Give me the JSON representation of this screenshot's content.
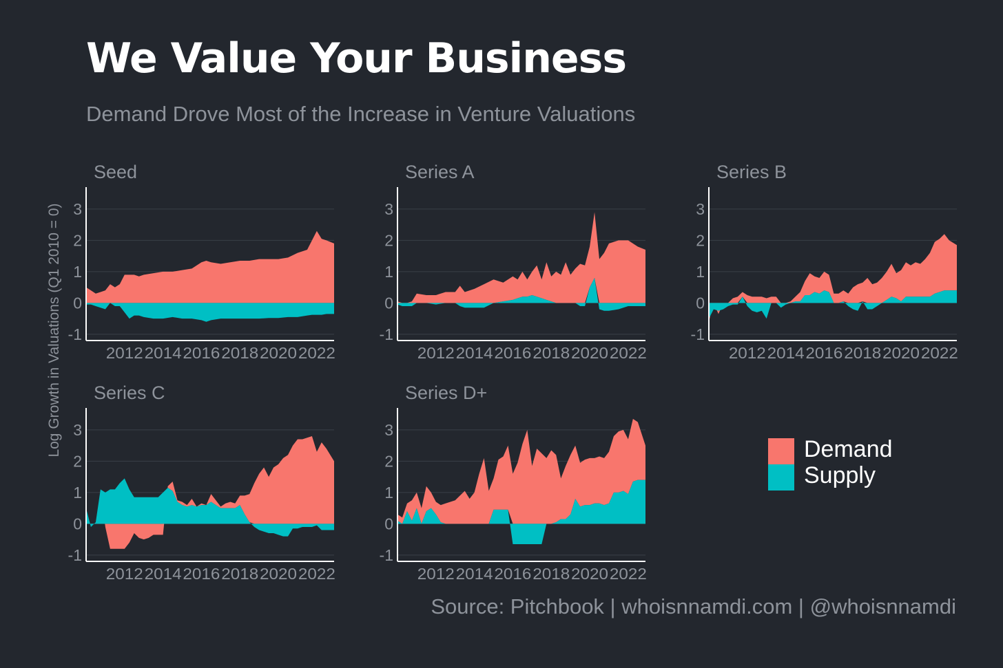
{
  "header": {
    "title": "We Value Your Business",
    "subtitle": "Demand Drove Most of the Increase in Venture Valuations"
  },
  "source": "Source: Pitchbook | whoisnnamdi.com | @whoisnnamdi",
  "colors": {
    "demand": "#f8766d",
    "supply": "#00bfc4",
    "background": "#23272e",
    "text": "#ffffff",
    "muted": "#8e939b"
  },
  "legend": [
    {
      "name": "Demand",
      "color": "#f8766d"
    },
    {
      "name": "Supply",
      "color": "#00bfc4"
    }
  ],
  "chart_data": {
    "type": "area",
    "stacking": "diverging-stacked",
    "ylabel": "Log Growth in Valuations (Q1 2010 = 0)",
    "xlabel": "",
    "xlim": [
      2010,
      2022.9
    ],
    "ylim": [
      -1.2,
      3.7
    ],
    "x_ticks": [
      2012,
      2014,
      2016,
      2018,
      2020,
      2022
    ],
    "y_ticks": [
      -1,
      0,
      1,
      2,
      3
    ],
    "grid": true,
    "legend_position": "right",
    "series_names": [
      "Demand",
      "Supply"
    ],
    "panels": [
      {
        "title": "Seed",
        "points": [
          [
            2010.0,
            0.5,
            -0.05
          ],
          [
            2010.25,
            0.4,
            -0.05
          ],
          [
            2010.5,
            0.3,
            -0.1
          ],
          [
            2010.75,
            0.35,
            -0.15
          ],
          [
            2011.0,
            0.4,
            -0.2
          ],
          [
            2011.25,
            0.6,
            0.0
          ],
          [
            2011.5,
            0.5,
            -0.1
          ],
          [
            2011.75,
            0.6,
            -0.1
          ],
          [
            2012.0,
            0.9,
            -0.3
          ],
          [
            2012.25,
            0.9,
            -0.5
          ],
          [
            2012.5,
            0.9,
            -0.4
          ],
          [
            2012.75,
            0.85,
            -0.4
          ],
          [
            2013.0,
            0.9,
            -0.45
          ],
          [
            2013.5,
            0.95,
            -0.5
          ],
          [
            2014.0,
            1.0,
            -0.5
          ],
          [
            2014.5,
            1.0,
            -0.45
          ],
          [
            2015.0,
            1.05,
            -0.5
          ],
          [
            2015.5,
            1.1,
            -0.5
          ],
          [
            2016.0,
            1.3,
            -0.55
          ],
          [
            2016.25,
            1.35,
            -0.6
          ],
          [
            2016.5,
            1.3,
            -0.55
          ],
          [
            2017.0,
            1.25,
            -0.5
          ],
          [
            2017.5,
            1.3,
            -0.5
          ],
          [
            2018.0,
            1.35,
            -0.5
          ],
          [
            2018.5,
            1.35,
            -0.5
          ],
          [
            2019.0,
            1.4,
            -0.5
          ],
          [
            2019.5,
            1.4,
            -0.48
          ],
          [
            2020.0,
            1.4,
            -0.48
          ],
          [
            2020.5,
            1.45,
            -0.45
          ],
          [
            2021.0,
            1.6,
            -0.45
          ],
          [
            2021.5,
            1.7,
            -0.4
          ],
          [
            2021.75,
            2.0,
            -0.38
          ],
          [
            2022.0,
            2.3,
            -0.38
          ],
          [
            2022.25,
            2.05,
            -0.38
          ],
          [
            2022.5,
            2.0,
            -0.35
          ],
          [
            2022.9,
            1.9,
            -0.35
          ]
        ]
      },
      {
        "title": "Series A",
        "points": [
          [
            2010.0,
            0.05,
            -0.05
          ],
          [
            2010.25,
            0.0,
            -0.1
          ],
          [
            2010.5,
            0.0,
            -0.1
          ],
          [
            2010.75,
            0.05,
            -0.1
          ],
          [
            2011.0,
            0.3,
            0.0
          ],
          [
            2011.5,
            0.25,
            0.0
          ],
          [
            2012.0,
            0.25,
            -0.05
          ],
          [
            2012.5,
            0.35,
            0.0
          ],
          [
            2013.0,
            0.35,
            0.0
          ],
          [
            2013.25,
            0.55,
            -0.1
          ],
          [
            2013.5,
            0.35,
            -0.15
          ],
          [
            2014.0,
            0.45,
            -0.15
          ],
          [
            2014.5,
            0.6,
            -0.15
          ],
          [
            2015.0,
            0.75,
            0.0
          ],
          [
            2015.5,
            0.6,
            0.05
          ],
          [
            2016.0,
            0.75,
            0.1
          ],
          [
            2016.25,
            0.6,
            0.15
          ],
          [
            2016.5,
            0.8,
            0.2
          ],
          [
            2016.75,
            0.55,
            0.2
          ],
          [
            2017.0,
            0.75,
            0.25
          ],
          [
            2017.25,
            1.0,
            0.2
          ],
          [
            2017.5,
            0.6,
            0.15
          ],
          [
            2017.75,
            1.2,
            0.1
          ],
          [
            2018.0,
            0.8,
            0.05
          ],
          [
            2018.25,
            1.0,
            0.0
          ],
          [
            2018.5,
            0.9,
            0.0
          ],
          [
            2018.75,
            1.3,
            0.0
          ],
          [
            2019.0,
            0.9,
            0.0
          ],
          [
            2019.25,
            1.1,
            0.0
          ],
          [
            2019.5,
            1.25,
            -0.1
          ],
          [
            2019.75,
            1.2,
            -0.1
          ],
          [
            2020.0,
            1.3,
            0.5
          ],
          [
            2020.25,
            2.1,
            0.8
          ],
          [
            2020.5,
            1.4,
            -0.2
          ],
          [
            2020.75,
            1.6,
            -0.25
          ],
          [
            2021.0,
            1.9,
            -0.25
          ],
          [
            2021.5,
            2.0,
            -0.2
          ],
          [
            2022.0,
            2.0,
            -0.1
          ],
          [
            2022.5,
            1.8,
            -0.1
          ],
          [
            2022.9,
            1.7,
            -0.1
          ]
        ]
      },
      {
        "title": "Series B",
        "points": [
          [
            2010.0,
            -0.1,
            -0.5
          ],
          [
            2010.25,
            0.0,
            -0.2
          ],
          [
            2010.5,
            -0.1,
            -0.25
          ],
          [
            2010.75,
            0.0,
            -0.2
          ],
          [
            2011.0,
            0.0,
            -0.1
          ],
          [
            2011.25,
            0.15,
            -0.05
          ],
          [
            2011.5,
            0.2,
            -0.05
          ],
          [
            2011.75,
            0.15,
            0.2
          ],
          [
            2012.0,
            0.25,
            -0.1
          ],
          [
            2012.25,
            0.2,
            -0.25
          ],
          [
            2012.5,
            0.2,
            -0.3
          ],
          [
            2012.75,
            0.2,
            -0.25
          ],
          [
            2013.0,
            0.15,
            -0.5
          ],
          [
            2013.25,
            0.2,
            0.0
          ],
          [
            2013.5,
            0.2,
            0.0
          ],
          [
            2013.75,
            0.0,
            -0.15
          ],
          [
            2014.0,
            0.0,
            -0.05
          ],
          [
            2014.25,
            0.05,
            0.0
          ],
          [
            2014.5,
            0.15,
            0.05
          ],
          [
            2014.75,
            0.3,
            0.05
          ],
          [
            2015.0,
            0.45,
            0.25
          ],
          [
            2015.25,
            0.7,
            0.25
          ],
          [
            2015.5,
            0.5,
            0.35
          ],
          [
            2015.75,
            0.5,
            0.3
          ],
          [
            2016.0,
            0.6,
            0.4
          ],
          [
            2016.25,
            0.55,
            0.35
          ],
          [
            2016.5,
            0.3,
            0.0
          ],
          [
            2016.75,
            0.3,
            0.0
          ],
          [
            2017.0,
            0.35,
            0.05
          ],
          [
            2017.25,
            0.3,
            -0.1
          ],
          [
            2017.5,
            0.5,
            -0.2
          ],
          [
            2017.75,
            0.6,
            -0.25
          ],
          [
            2018.0,
            0.6,
            0.05
          ],
          [
            2018.25,
            0.8,
            -0.2
          ],
          [
            2018.5,
            0.6,
            -0.2
          ],
          [
            2018.75,
            0.65,
            -0.1
          ],
          [
            2019.0,
            0.8,
            0.0
          ],
          [
            2019.25,
            0.9,
            0.1
          ],
          [
            2019.5,
            1.05,
            0.2
          ],
          [
            2019.75,
            0.8,
            0.15
          ],
          [
            2020.0,
            1.0,
            0.05
          ],
          [
            2020.25,
            1.1,
            0.2
          ],
          [
            2020.5,
            1.0,
            0.2
          ],
          [
            2020.75,
            1.1,
            0.2
          ],
          [
            2021.0,
            1.05,
            0.2
          ],
          [
            2021.25,
            1.2,
            0.2
          ],
          [
            2021.5,
            1.4,
            0.2
          ],
          [
            2021.75,
            1.65,
            0.3
          ],
          [
            2022.0,
            1.7,
            0.35
          ],
          [
            2022.25,
            1.8,
            0.4
          ],
          [
            2022.5,
            1.6,
            0.4
          ],
          [
            2022.9,
            1.45,
            0.4
          ]
        ]
      },
      {
        "title": "Series C",
        "points": [
          [
            2010.0,
            0.0,
            0.5
          ],
          [
            2010.25,
            0.0,
            -0.1
          ],
          [
            2010.5,
            0.0,
            0.05
          ],
          [
            2010.75,
            0.0,
            1.1
          ],
          [
            2011.0,
            -0.1,
            1.0
          ],
          [
            2011.25,
            -0.8,
            1.1
          ],
          [
            2011.5,
            -0.8,
            1.1
          ],
          [
            2011.75,
            -0.8,
            1.3
          ],
          [
            2012.0,
            -0.8,
            1.45
          ],
          [
            2012.25,
            -0.6,
            1.1
          ],
          [
            2012.5,
            -0.3,
            0.85
          ],
          [
            2012.75,
            -0.45,
            0.85
          ],
          [
            2013.0,
            -0.5,
            0.85
          ],
          [
            2013.25,
            -0.45,
            0.85
          ],
          [
            2013.5,
            -0.35,
            0.85
          ],
          [
            2013.75,
            -0.35,
            0.85
          ],
          [
            2014.0,
            -0.35,
            1.0
          ],
          [
            2014.25,
            0.05,
            1.15
          ],
          [
            2014.5,
            0.3,
            1.05
          ],
          [
            2014.75,
            0.05,
            0.7
          ],
          [
            2015.0,
            0.1,
            0.6
          ],
          [
            2015.25,
            0.05,
            0.55
          ],
          [
            2015.5,
            0.2,
            0.6
          ],
          [
            2015.75,
            0.0,
            0.55
          ],
          [
            2016.0,
            0.05,
            0.6
          ],
          [
            2016.25,
            0.0,
            0.6
          ],
          [
            2016.5,
            0.25,
            0.7
          ],
          [
            2016.75,
            0.15,
            0.6
          ],
          [
            2017.0,
            0.05,
            0.5
          ],
          [
            2017.25,
            0.15,
            0.5
          ],
          [
            2017.5,
            0.2,
            0.5
          ],
          [
            2017.75,
            0.15,
            0.5
          ],
          [
            2018.0,
            0.3,
            0.6
          ],
          [
            2018.25,
            0.6,
            0.3
          ],
          [
            2018.5,
            0.9,
            0.05
          ],
          [
            2018.75,
            1.3,
            -0.1
          ],
          [
            2019.0,
            1.6,
            -0.2
          ],
          [
            2019.25,
            1.8,
            -0.25
          ],
          [
            2019.5,
            1.5,
            -0.3
          ],
          [
            2019.75,
            1.8,
            -0.3
          ],
          [
            2020.0,
            1.9,
            -0.35
          ],
          [
            2020.25,
            2.1,
            -0.4
          ],
          [
            2020.5,
            2.2,
            -0.4
          ],
          [
            2020.75,
            2.5,
            -0.15
          ],
          [
            2021.0,
            2.7,
            -0.15
          ],
          [
            2021.25,
            2.7,
            -0.1
          ],
          [
            2021.5,
            2.75,
            -0.1
          ],
          [
            2021.75,
            2.8,
            -0.1
          ],
          [
            2022.0,
            2.3,
            -0.05
          ],
          [
            2022.25,
            2.6,
            -0.2
          ],
          [
            2022.5,
            2.4,
            -0.2
          ],
          [
            2022.9,
            2.0,
            -0.2
          ]
        ]
      },
      {
        "title": "Series D+",
        "points": [
          [
            2010.0,
            0.2,
            0.1
          ],
          [
            2010.25,
            0.2,
            0.0
          ],
          [
            2010.5,
            0.25,
            0.4
          ],
          [
            2010.75,
            0.65,
            0.1
          ],
          [
            2011.0,
            0.5,
            0.5
          ],
          [
            2011.25,
            0.5,
            0.0
          ],
          [
            2011.5,
            0.8,
            0.4
          ],
          [
            2011.75,
            0.5,
            0.5
          ],
          [
            2012.0,
            0.4,
            0.3
          ],
          [
            2012.25,
            0.55,
            0.05
          ],
          [
            2012.5,
            0.65,
            0.0
          ],
          [
            2012.75,
            0.7,
            0.0
          ],
          [
            2013.0,
            0.75,
            0.0
          ],
          [
            2013.25,
            0.9,
            0.0
          ],
          [
            2013.5,
            1.05,
            0.0
          ],
          [
            2013.75,
            0.8,
            0.0
          ],
          [
            2014.0,
            1.0,
            0.0
          ],
          [
            2014.25,
            1.6,
            0.0
          ],
          [
            2014.5,
            2.1,
            0.0
          ],
          [
            2014.75,
            1.05,
            0.0
          ],
          [
            2015.0,
            1.0,
            0.45
          ],
          [
            2015.25,
            1.6,
            0.45
          ],
          [
            2015.5,
            1.7,
            0.45
          ],
          [
            2015.75,
            2.05,
            0.45
          ],
          [
            2016.0,
            1.6,
            -0.65
          ],
          [
            2016.25,
            1.95,
            -0.65
          ],
          [
            2016.5,
            2.55,
            -0.65
          ],
          [
            2016.75,
            3.0,
            -0.65
          ],
          [
            2017.0,
            1.85,
            -0.65
          ],
          [
            2017.25,
            2.4,
            -0.65
          ],
          [
            2017.5,
            2.25,
            -0.65
          ],
          [
            2017.75,
            2.1,
            0.0
          ],
          [
            2018.0,
            2.35,
            0.0
          ],
          [
            2018.25,
            2.15,
            0.05
          ],
          [
            2018.5,
            1.3,
            0.15
          ],
          [
            2018.75,
            1.7,
            0.15
          ],
          [
            2019.0,
            1.9,
            0.3
          ],
          [
            2019.25,
            1.7,
            0.8
          ],
          [
            2019.5,
            1.4,
            0.55
          ],
          [
            2019.75,
            1.45,
            0.6
          ],
          [
            2020.0,
            1.5,
            0.6
          ],
          [
            2020.25,
            1.45,
            0.65
          ],
          [
            2020.5,
            1.5,
            0.65
          ],
          [
            2020.75,
            1.5,
            0.6
          ],
          [
            2021.0,
            1.65,
            0.65
          ],
          [
            2021.25,
            1.8,
            1.0
          ],
          [
            2021.5,
            1.95,
            1.0
          ],
          [
            2021.75,
            1.95,
            1.05
          ],
          [
            2022.0,
            1.75,
            0.95
          ],
          [
            2022.25,
            2.0,
            1.35
          ],
          [
            2022.5,
            1.85,
            1.4
          ],
          [
            2022.9,
            1.1,
            1.4
          ]
        ]
      }
    ]
  }
}
